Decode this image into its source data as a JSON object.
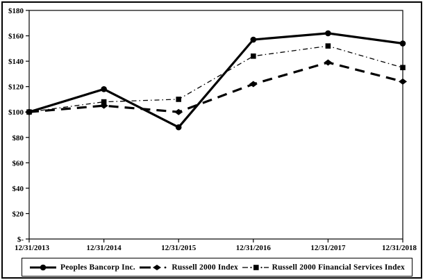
{
  "chart_data": {
    "type": "line",
    "title": "",
    "xlabel": "",
    "ylabel": "",
    "categories": [
      "12/31/2013",
      "12/31/2014",
      "12/31/2015",
      "12/31/2016",
      "12/31/2017",
      "12/31/2018"
    ],
    "series": [
      {
        "name": "Peoples Bancorp Inc.",
        "marker": "circle",
        "line": "solid-thick",
        "values": [
          100,
          118,
          88,
          157,
          162,
          154
        ]
      },
      {
        "name": "Russell 2000 Index",
        "marker": "diamond",
        "line": "dashed-thick",
        "values": [
          100,
          105,
          100,
          122,
          139,
          124
        ]
      },
      {
        "name": "Russell 2000 Financial Services Index",
        "marker": "square",
        "line": "dashdot-thin",
        "values": [
          100,
          108,
          110,
          144,
          152,
          135
        ]
      }
    ],
    "ylim": [
      0,
      180
    ],
    "y_ticks": [
      {
        "value": 0,
        "label": "$-"
      },
      {
        "value": 20,
        "label": "$20"
      },
      {
        "value": 40,
        "label": "$40"
      },
      {
        "value": 60,
        "label": "$60"
      },
      {
        "value": 80,
        "label": "$80"
      },
      {
        "value": 100,
        "label": "$100"
      },
      {
        "value": 120,
        "label": "$120"
      },
      {
        "value": 140,
        "label": "$140"
      },
      {
        "value": 160,
        "label": "$160"
      },
      {
        "value": 180,
        "label": "$180"
      }
    ],
    "grid": false,
    "legend_position": "bottom",
    "colors": {
      "series": "#000000",
      "background": "#ffffff",
      "border": "#000000"
    }
  }
}
